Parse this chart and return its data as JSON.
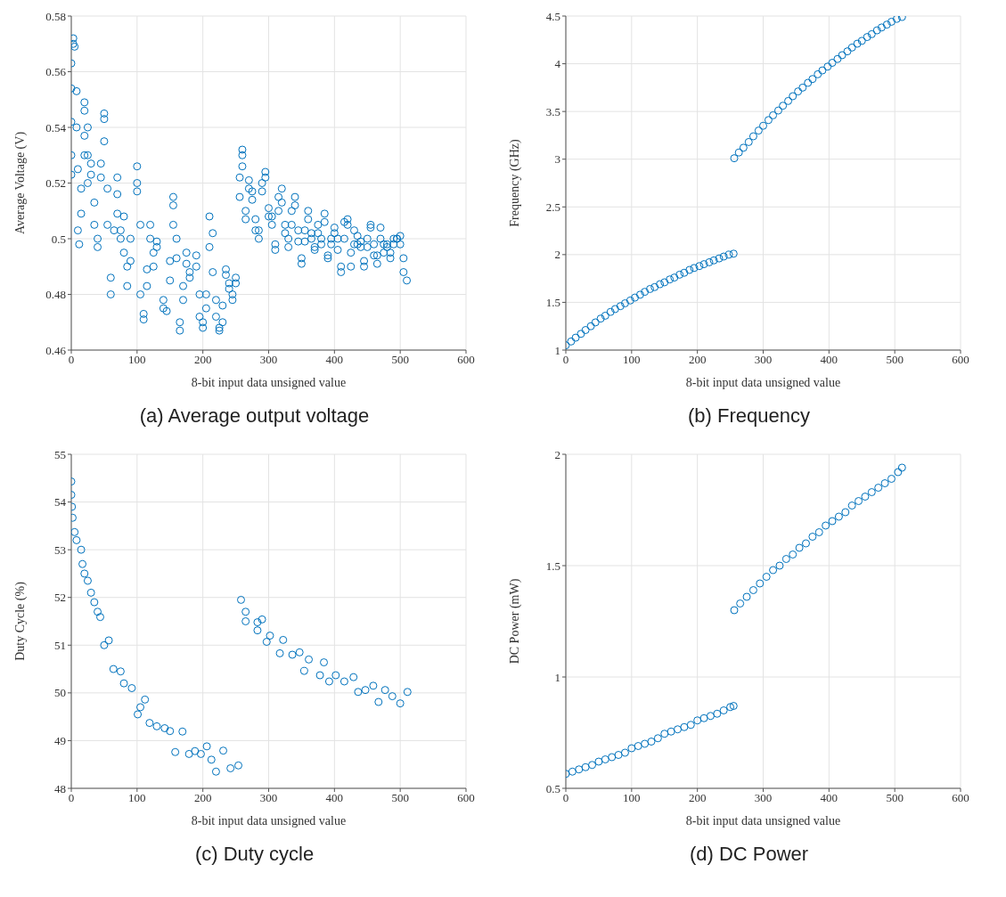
{
  "chart_data": [
    {
      "type": "scatter",
      "title": "(a) Average output voltage",
      "xlabel": "8-bit input data unsigned value",
      "ylabel": "Average Voltage (V)",
      "xlim": [
        0,
        600
      ],
      "xticks": [
        0,
        100,
        200,
        300,
        400,
        500,
        600
      ],
      "ylim": [
        0.46,
        0.58
      ],
      "yticks": [
        0.46,
        0.48,
        0.5,
        0.52,
        0.54,
        0.56,
        0.58
      ],
      "grid": true,
      "marker": "circle",
      "series": [
        {
          "color": "#0072bd",
          "x": [
            0,
            0,
            0,
            0,
            0,
            3,
            3,
            5,
            8,
            8,
            10,
            10,
            12,
            15,
            15,
            20,
            20,
            20,
            20,
            25,
            25,
            25,
            30,
            30,
            35,
            35,
            40,
            40,
            45,
            45,
            50,
            50,
            50,
            55,
            55,
            60,
            60,
            65,
            70,
            70,
            70,
            75,
            75,
            80,
            80,
            85,
            85,
            90,
            90,
            100,
            100,
            100,
            105,
            105,
            110,
            110,
            115,
            115,
            120,
            120,
            125,
            125,
            130,
            130,
            140,
            140,
            145,
            150,
            150,
            155,
            155,
            155,
            160,
            160,
            165,
            165,
            170,
            170,
            175,
            175,
            180,
            180,
            190,
            190,
            195,
            195,
            200,
            200,
            205,
            205,
            210,
            210,
            215,
            215,
            220,
            220,
            225,
            225,
            230,
            230,
            235,
            235,
            240,
            240,
            245,
            245,
            250,
            250,
            256,
            256,
            260,
            260,
            260,
            265,
            265,
            270,
            270,
            275,
            275,
            280,
            280,
            285,
            285,
            290,
            290,
            295,
            295,
            300,
            300,
            305,
            305,
            310,
            310,
            315,
            315,
            320,
            320,
            325,
            325,
            330,
            330,
            335,
            335,
            340,
            340,
            345,
            345,
            350,
            350,
            355,
            355,
            360,
            360,
            365,
            365,
            370,
            370,
            375,
            375,
            380,
            380,
            385,
            385,
            390,
            390,
            395,
            395,
            400,
            400,
            405,
            405,
            410,
            410,
            415,
            415,
            420,
            420,
            425,
            425,
            430,
            430,
            435,
            435,
            440,
            440,
            445,
            445,
            450,
            450,
            455,
            455,
            460,
            460,
            465,
            465,
            470,
            470,
            475,
            475,
            480,
            480,
            485,
            485,
            490,
            490,
            495,
            495,
            500,
            500,
            505,
            505,
            510
          ],
          "values": [
            0.523,
            0.53,
            0.542,
            0.554,
            0.563,
            0.572,
            0.57,
            0.569,
            0.553,
            0.54,
            0.525,
            0.503,
            0.498,
            0.509,
            0.518,
            0.53,
            0.537,
            0.546,
            0.549,
            0.54,
            0.53,
            0.52,
            0.523,
            0.527,
            0.513,
            0.505,
            0.497,
            0.5,
            0.522,
            0.527,
            0.535,
            0.543,
            0.545,
            0.518,
            0.505,
            0.486,
            0.48,
            0.503,
            0.522,
            0.516,
            0.509,
            0.5,
            0.503,
            0.508,
            0.495,
            0.49,
            0.483,
            0.5,
            0.492,
            0.517,
            0.526,
            0.52,
            0.505,
            0.48,
            0.473,
            0.471,
            0.483,
            0.489,
            0.505,
            0.5,
            0.495,
            0.49,
            0.497,
            0.499,
            0.478,
            0.475,
            0.474,
            0.485,
            0.492,
            0.512,
            0.515,
            0.505,
            0.5,
            0.493,
            0.47,
            0.467,
            0.478,
            0.483,
            0.495,
            0.491,
            0.488,
            0.486,
            0.49,
            0.494,
            0.48,
            0.472,
            0.47,
            0.468,
            0.475,
            0.48,
            0.497,
            0.508,
            0.502,
            0.488,
            0.478,
            0.472,
            0.468,
            0.467,
            0.47,
            0.476,
            0.489,
            0.487,
            0.484,
            0.482,
            0.48,
            0.478,
            0.484,
            0.486,
            0.515,
            0.522,
            0.532,
            0.53,
            0.526,
            0.51,
            0.507,
            0.518,
            0.521,
            0.514,
            0.517,
            0.503,
            0.507,
            0.5,
            0.503,
            0.517,
            0.52,
            0.524,
            0.522,
            0.511,
            0.508,
            0.505,
            0.508,
            0.498,
            0.496,
            0.51,
            0.515,
            0.518,
            0.513,
            0.505,
            0.502,
            0.5,
            0.497,
            0.505,
            0.51,
            0.515,
            0.512,
            0.503,
            0.499,
            0.493,
            0.491,
            0.499,
            0.503,
            0.51,
            0.507,
            0.502,
            0.5,
            0.497,
            0.496,
            0.505,
            0.502,
            0.5,
            0.498,
            0.506,
            0.509,
            0.494,
            0.493,
            0.5,
            0.498,
            0.502,
            0.504,
            0.5,
            0.496,
            0.49,
            0.488,
            0.5,
            0.506,
            0.507,
            0.505,
            0.495,
            0.49,
            0.498,
            0.503,
            0.501,
            0.498,
            0.499,
            0.497,
            0.492,
            0.49,
            0.497,
            0.5,
            0.504,
            0.505,
            0.498,
            0.494,
            0.494,
            0.491,
            0.5,
            0.504,
            0.498,
            0.495,
            0.497,
            0.498,
            0.493,
            0.495,
            0.498,
            0.5,
            0.5,
            0.5,
            0.501,
            0.498,
            0.493,
            0.488,
            0.485
          ]
        }
      ]
    },
    {
      "type": "scatter",
      "title": "(b) Frequency",
      "xlabel": "8-bit input data unsigned value",
      "ylabel": "Frequency (GHz)",
      "xlim": [
        0,
        600
      ],
      "xticks": [
        0,
        100,
        200,
        300,
        400,
        500,
        600
      ],
      "ylim": [
        1,
        4.5
      ],
      "yticks": [
        1,
        1.5,
        2,
        2.5,
        3,
        3.5,
        4,
        4.5
      ],
      "grid": true,
      "marker": "circle",
      "series": [
        {
          "color": "#0072bd",
          "x": [
            0,
            8,
            15,
            23,
            30,
            38,
            45,
            53,
            60,
            68,
            75,
            83,
            90,
            98,
            105,
            113,
            120,
            128,
            135,
            143,
            150,
            158,
            165,
            173,
            180,
            188,
            195,
            203,
            210,
            218,
            225,
            233,
            240,
            248,
            255,
            256,
            263,
            270,
            278,
            285,
            293,
            300,
            308,
            315,
            323,
            330,
            338,
            345,
            353,
            360,
            368,
            375,
            383,
            390,
            398,
            405,
            413,
            420,
            428,
            435,
            443,
            450,
            458,
            465,
            473,
            480,
            488,
            495,
            503,
            511
          ],
          "values": [
            1.05,
            1.09,
            1.13,
            1.17,
            1.21,
            1.25,
            1.29,
            1.33,
            1.36,
            1.4,
            1.43,
            1.46,
            1.49,
            1.52,
            1.55,
            1.58,
            1.61,
            1.64,
            1.66,
            1.69,
            1.71,
            1.74,
            1.76,
            1.79,
            1.81,
            1.84,
            1.86,
            1.88,
            1.9,
            1.92,
            1.94,
            1.96,
            1.98,
            2,
            2.01,
            3.01,
            3.07,
            3.12,
            3.18,
            3.24,
            3.3,
            3.35,
            3.41,
            3.46,
            3.51,
            3.56,
            3.61,
            3.66,
            3.71,
            3.75,
            3.8,
            3.84,
            3.89,
            3.93,
            3.97,
            4.01,
            4.05,
            4.09,
            4.13,
            4.17,
            4.21,
            4.24,
            4.28,
            4.31,
            4.35,
            4.38,
            4.41,
            4.44,
            4.47,
            4.49
          ]
        }
      ]
    },
    {
      "type": "scatter",
      "title": "(c) Duty cycle",
      "xlabel": "8-bit input data unsigned value",
      "ylabel": "Duty Cycle (%)",
      "xlim": [
        0,
        600
      ],
      "xticks": [
        0,
        100,
        200,
        300,
        400,
        500,
        600
      ],
      "ylim": [
        48,
        55
      ],
      "yticks": [
        48,
        49,
        50,
        51,
        52,
        53,
        54,
        55
      ],
      "grid": true,
      "marker": "circle",
      "series": [
        {
          "color": "#0072bd",
          "x": [
            0,
            0,
            1,
            2,
            5,
            8,
            15,
            17,
            20,
            25,
            30,
            35,
            40,
            44,
            50,
            57,
            64,
            75,
            80,
            92,
            101,
            105,
            112,
            119,
            130,
            142,
            150,
            158,
            169,
            179,
            188,
            197,
            206,
            213,
            220,
            231,
            242,
            254,
            258,
            265,
            265,
            283,
            290,
            283,
            302,
            297,
            322,
            317,
            336,
            347,
            354,
            361,
            384,
            378,
            392,
            402,
            415,
            429,
            436,
            447,
            459,
            467,
            477,
            488,
            500,
            511
          ],
          "values": [
            54.43,
            54.15,
            53.9,
            53.67,
            53.37,
            53.2,
            53.0,
            52.7,
            52.5,
            52.35,
            52.1,
            51.9,
            51.7,
            51.59,
            51.0,
            51.1,
            50.5,
            50.45,
            50.2,
            50.1,
            49.55,
            49.7,
            49.86,
            49.37,
            49.3,
            49.26,
            49.2,
            48.76,
            49.19,
            48.72,
            48.78,
            48.72,
            48.88,
            48.6,
            48.35,
            48.79,
            48.42,
            48.48,
            51.95,
            51.7,
            51.5,
            51.48,
            51.54,
            51.31,
            51.2,
            51.07,
            51.11,
            50.83,
            50.8,
            50.85,
            50.46,
            50.7,
            50.64,
            50.37,
            50.24,
            50.37,
            50.24,
            50.33,
            50.02,
            50.06,
            50.15,
            49.81,
            50.06,
            49.93,
            49.78,
            50.02
          ]
        }
      ]
    },
    {
      "type": "scatter",
      "title": "(d) DC Power",
      "xlabel": "8-bit input data unsigned value",
      "ylabel": "DC Power (mW)",
      "xlim": [
        0,
        600
      ],
      "xticks": [
        0,
        100,
        200,
        300,
        400,
        500,
        600
      ],
      "ylim": [
        0.5,
        2
      ],
      "yticks": [
        0.5,
        1,
        1.5,
        2
      ],
      "grid": true,
      "marker": "circle",
      "series": [
        {
          "color": "#0072bd",
          "x": [
            0,
            10,
            20,
            30,
            40,
            50,
            60,
            70,
            80,
            90,
            100,
            110,
            120,
            130,
            140,
            150,
            160,
            170,
            180,
            190,
            200,
            210,
            220,
            230,
            240,
            250,
            255,
            256,
            265,
            275,
            285,
            295,
            305,
            315,
            325,
            335,
            345,
            355,
            365,
            375,
            385,
            395,
            405,
            415,
            425,
            435,
            445,
            455,
            465,
            475,
            485,
            495,
            505,
            511
          ],
          "values": [
            0.565,
            0.575,
            0.585,
            0.595,
            0.605,
            0.62,
            0.63,
            0.64,
            0.65,
            0.66,
            0.68,
            0.69,
            0.7,
            0.71,
            0.725,
            0.745,
            0.755,
            0.765,
            0.775,
            0.785,
            0.805,
            0.815,
            0.825,
            0.835,
            0.85,
            0.865,
            0.87,
            1.3,
            1.33,
            1.36,
            1.39,
            1.42,
            1.45,
            1.48,
            1.5,
            1.53,
            1.55,
            1.58,
            1.6,
            1.63,
            1.65,
            1.68,
            1.7,
            1.72,
            1.74,
            1.77,
            1.79,
            1.81,
            1.83,
            1.85,
            1.87,
            1.89,
            1.92,
            1.94
          ]
        }
      ]
    }
  ]
}
